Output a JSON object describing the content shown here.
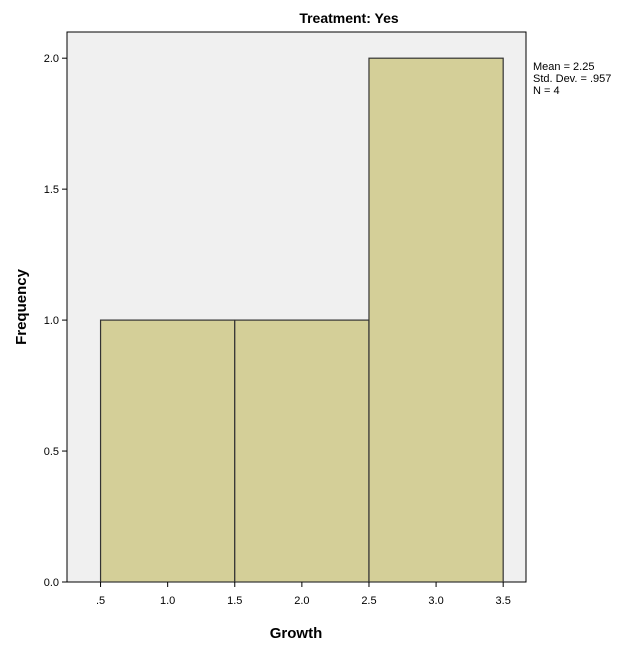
{
  "chart_data": {
    "type": "bar",
    "title": "Treatment: Yes",
    "xlabel": "Growth",
    "ylabel": "Frequency",
    "bins": [
      {
        "start": 0.5,
        "end": 1.5,
        "value": 1
      },
      {
        "start": 1.5,
        "end": 2.5,
        "value": 1
      },
      {
        "start": 2.5,
        "end": 3.5,
        "value": 2
      }
    ],
    "xlim": [
      0.25,
      3.67
    ],
    "ylim": [
      0,
      2.1
    ],
    "x_ticks": [
      0.5,
      1.0,
      1.5,
      2.0,
      2.5,
      3.0,
      3.5
    ],
    "x_tick_labels": [
      ".5",
      "1.0",
      "1.5",
      "2.0",
      "2.5",
      "3.0",
      "3.5"
    ],
    "y_ticks": [
      0,
      0.5,
      1.0,
      1.5,
      2.0
    ],
    "y_tick_labels": [
      "0.0",
      "0.5",
      "1.0",
      "1.5",
      "2.0"
    ],
    "stats": [
      "Mean = 2.25",
      "Std. Dev. = .957",
      "N = 4"
    ],
    "grid": false,
    "colors": {
      "bar_fill": "#d4cf98",
      "bar_stroke": "#333333",
      "plot_background": "#f0f0f0"
    }
  }
}
